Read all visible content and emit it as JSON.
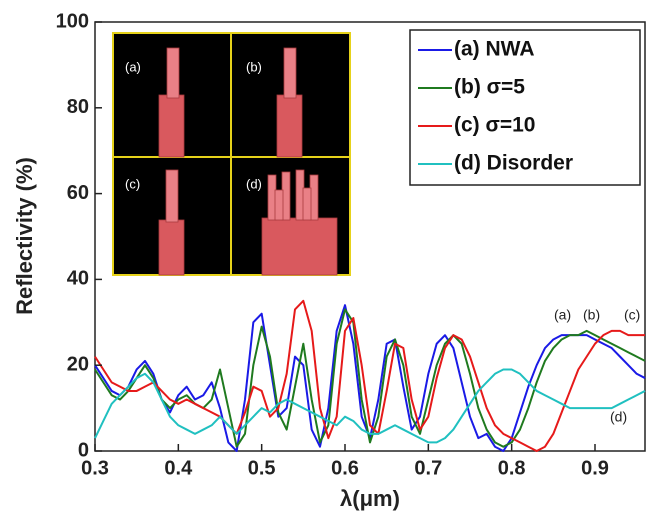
{
  "chart_data": {
    "type": "line",
    "x_label": "λ(μm)",
    "y_label": "Reflectivity (%)",
    "x": [
      0.3,
      0.31,
      0.32,
      0.33,
      0.34,
      0.35,
      0.36,
      0.37,
      0.38,
      0.39,
      0.4,
      0.41,
      0.42,
      0.43,
      0.44,
      0.45,
      0.46,
      0.47,
      0.48,
      0.49,
      0.5,
      0.51,
      0.52,
      0.53,
      0.54,
      0.55,
      0.56,
      0.57,
      0.58,
      0.59,
      0.6,
      0.61,
      0.62,
      0.63,
      0.64,
      0.65,
      0.66,
      0.67,
      0.68,
      0.69,
      0.7,
      0.71,
      0.72,
      0.73,
      0.74,
      0.75,
      0.76,
      0.77,
      0.78,
      0.79,
      0.8,
      0.81,
      0.82,
      0.83,
      0.84,
      0.85,
      0.86,
      0.87,
      0.88,
      0.89,
      0.9,
      0.91,
      0.92,
      0.93,
      0.94,
      0.95,
      0.96
    ],
    "series": [
      {
        "name": "(a) NWA",
        "color": "#1a1ae6",
        "values": [
          20,
          17,
          14,
          13,
          15,
          19,
          21,
          18,
          12,
          9,
          13,
          15,
          12,
          13,
          16,
          10,
          2,
          0,
          12,
          30,
          32,
          20,
          8,
          10,
          22,
          20,
          5,
          1,
          10,
          28,
          34,
          25,
          8,
          3,
          12,
          25,
          26,
          15,
          5,
          8,
          18,
          25,
          27,
          24,
          16,
          8,
          3,
          4,
          1,
          0,
          3,
          9,
          15,
          20,
          24,
          26,
          27,
          27,
          27,
          27,
          26,
          25,
          24,
          22,
          20,
          18,
          17
        ]
      },
      {
        "name": "(b) σ=5",
        "color": "#1f7a1f",
        "values": [
          19,
          16,
          13,
          12,
          14,
          17,
          20,
          17,
          12,
          10,
          12,
          13,
          11,
          10,
          12,
          19,
          10,
          1,
          4,
          20,
          29,
          22,
          9,
          5,
          15,
          25,
          12,
          2,
          6,
          25,
          33,
          30,
          12,
          2,
          8,
          22,
          26,
          20,
          8,
          4,
          12,
          20,
          25,
          27,
          25,
          18,
          10,
          5,
          2,
          1,
          2,
          5,
          10,
          16,
          21,
          24,
          26,
          27,
          27,
          28,
          27,
          26,
          25,
          24,
          23,
          22,
          21
        ]
      },
      {
        "name": "(c) σ=10",
        "color": "#e61a1a",
        "values": [
          22,
          19,
          16,
          15,
          14,
          14,
          15,
          16,
          14,
          12,
          11,
          12,
          11,
          10,
          9,
          8,
          6,
          4,
          9,
          15,
          14,
          8,
          10,
          18,
          33,
          35,
          28,
          10,
          3,
          8,
          28,
          31,
          20,
          6,
          4,
          14,
          25,
          24,
          12,
          5,
          8,
          17,
          24,
          27,
          26,
          22,
          16,
          10,
          6,
          4,
          3,
          2,
          1,
          0,
          1,
          4,
          9,
          14,
          19,
          22,
          25,
          27,
          28,
          28,
          27,
          27,
          27
        ]
      },
      {
        "name": "(d) Disorder",
        "color": "#20c0c0",
        "values": [
          3,
          7,
          11,
          13,
          15,
          17,
          18,
          16,
          12,
          8,
          6,
          5,
          4,
          5,
          6,
          8,
          6,
          4,
          6,
          8,
          10,
          9,
          11,
          12,
          11,
          10,
          9,
          8,
          7,
          6,
          8,
          7,
          5,
          4,
          4,
          5,
          6,
          5,
          4,
          3,
          2,
          2,
          3,
          5,
          8,
          11,
          14,
          16,
          18,
          19,
          19,
          18,
          16,
          14,
          13,
          12,
          11,
          10,
          10,
          10,
          10,
          10,
          10,
          11,
          12,
          13,
          14
        ]
      }
    ],
    "xlim": [
      0.3,
      0.96
    ],
    "ylim": [
      0,
      100
    ],
    "xticks": [
      0.3,
      0.4,
      0.5,
      0.6,
      0.7,
      0.8,
      0.9
    ],
    "yticks": [
      0,
      20,
      40,
      60,
      80,
      100
    ],
    "annotations": [
      "(a)",
      "(b)",
      "(c)",
      "(d)"
    ],
    "legend": "upper right"
  },
  "inset": {
    "labels": [
      "(a)",
      "(b)",
      "(c)",
      "(d)"
    ]
  }
}
